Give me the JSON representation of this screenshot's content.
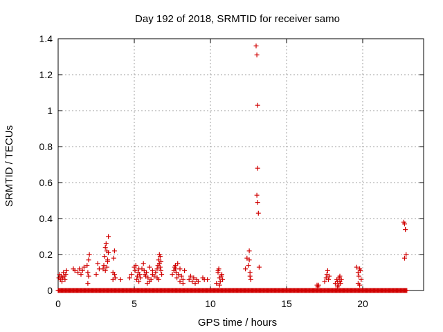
{
  "chart_data": {
    "type": "scatter",
    "title": "Day 192 of 2018, SRMTID for receiver samo",
    "xlabel": "GPS time / hours",
    "ylabel": "SRMTID / TECUs",
    "xlim": [
      0,
      24
    ],
    "ylim": [
      0,
      1.4
    ],
    "xticks": [
      0,
      5,
      10,
      15,
      20
    ],
    "xtick_labels": [
      "0",
      "5",
      "10",
      "15",
      "20"
    ],
    "yticks": [
      0,
      0.2,
      0.4,
      0.6,
      0.8,
      1.0,
      1.2,
      1.4
    ],
    "ytick_labels": [
      "0",
      "0.2",
      "0.4",
      "0.6",
      "0.8",
      "1",
      "1.2",
      "1.4"
    ],
    "grid": true,
    "marker": "+",
    "color": "#d00000",
    "baseline": {
      "y": 0,
      "x_start": 0,
      "x_end": 22.9,
      "step": 0.05
    },
    "series": [
      {
        "name": "samo",
        "x": [
          0.05,
          0.1,
          0.15,
          0.2,
          0.25,
          0.3,
          0.35,
          0.4,
          0.45,
          0.5,
          0.55,
          1.0,
          1.1,
          1.3,
          1.4,
          1.5,
          1.6,
          1.7,
          1.9,
          1.95,
          2.0,
          2.05,
          1.95,
          2.0,
          2.5,
          2.6,
          2.7,
          2.95,
          3.0,
          3.05,
          3.1,
          3.15,
          3.2,
          3.25,
          3.3,
          3.1,
          3.2,
          3.3,
          3.25,
          3.6,
          3.65,
          3.7,
          3.75,
          3.6,
          3.7,
          4.1,
          4.7,
          4.8,
          5.0,
          5.05,
          5.1,
          5.2,
          5.25,
          5.3,
          5.35,
          5.4,
          5.15,
          5.3,
          5.5,
          5.6,
          5.65,
          5.7,
          5.75,
          5.8,
          5.9,
          6.0,
          6.1,
          6.2,
          6.0,
          6.2,
          5.85,
          6.3,
          6.4,
          6.5,
          6.55,
          6.6,
          6.65,
          6.7,
          6.75,
          6.8,
          6.6,
          6.7,
          6.5,
          6.65,
          6.75,
          7.5,
          7.6,
          7.65,
          7.7,
          7.75,
          7.8,
          7.85,
          7.9,
          8.0,
          8.1,
          8.2,
          8.3,
          8.0,
          8.2,
          7.7,
          8.6,
          8.7,
          8.8,
          8.9,
          9.0,
          9.1,
          9.2,
          9.5,
          9.6,
          9.8,
          10.4,
          10.5,
          10.55,
          10.6,
          10.65,
          10.7,
          10.75,
          10.8,
          10.5,
          10.6,
          12.3,
          12.4,
          12.5,
          12.55,
          12.6,
          12.65,
          12.55,
          12.6,
          13.0,
          13.05,
          13.1,
          13.1,
          13.05,
          13.1,
          13.15,
          13.2,
          17.0,
          17.05,
          17.1,
          17.5,
          17.6,
          17.65,
          17.7,
          17.75,
          17.8,
          18.2,
          18.3,
          18.35,
          18.4,
          18.45,
          18.5,
          18.55,
          18.6,
          18.35,
          18.5,
          19.6,
          19.7,
          19.75,
          19.8,
          19.85,
          19.9,
          19.7,
          19.8,
          22.7,
          22.75,
          22.8,
          22.85,
          22.75,
          22.8
        ],
        "y": [
          0.07,
          0.09,
          0.06,
          0.08,
          0.05,
          0.07,
          0.1,
          0.08,
          0.06,
          0.09,
          0.11,
          0.12,
          0.11,
          0.1,
          0.12,
          0.09,
          0.11,
          0.13,
          0.14,
          0.1,
          0.17,
          0.2,
          0.04,
          0.08,
          0.09,
          0.15,
          0.12,
          0.12,
          0.14,
          0.19,
          0.24,
          0.26,
          0.22,
          0.17,
          0.3,
          0.11,
          0.13,
          0.21,
          0.16,
          0.1,
          0.18,
          0.22,
          0.07,
          0.06,
          0.09,
          0.06,
          0.07,
          0.09,
          0.13,
          0.11,
          0.14,
          0.08,
          0.1,
          0.12,
          0.09,
          0.07,
          0.06,
          0.05,
          0.12,
          0.15,
          0.11,
          0.09,
          0.08,
          0.1,
          0.07,
          0.13,
          0.06,
          0.09,
          0.05,
          0.11,
          0.04,
          0.08,
          0.1,
          0.12,
          0.14,
          0.17,
          0.2,
          0.19,
          0.11,
          0.09,
          0.06,
          0.13,
          0.07,
          0.15,
          0.16,
          0.09,
          0.11,
          0.13,
          0.12,
          0.1,
          0.07,
          0.15,
          0.09,
          0.12,
          0.08,
          0.06,
          0.11,
          0.05,
          0.04,
          0.14,
          0.06,
          0.08,
          0.05,
          0.07,
          0.04,
          0.06,
          0.05,
          0.07,
          0.06,
          0.06,
          0.04,
          0.1,
          0.12,
          0.07,
          0.05,
          0.08,
          0.09,
          0.06,
          0.11,
          0.03,
          0.12,
          0.18,
          0.14,
          0.22,
          0.08,
          0.06,
          0.17,
          0.1,
          1.36,
          1.31,
          1.03,
          0.68,
          0.53,
          0.49,
          0.43,
          0.13,
          0.03,
          0.02,
          0.03,
          0.05,
          0.07,
          0.09,
          0.11,
          0.06,
          0.08,
          0.04,
          0.06,
          0.05,
          0.03,
          0.07,
          0.05,
          0.04,
          0.06,
          0.02,
          0.08,
          0.13,
          0.1,
          0.08,
          0.12,
          0.11,
          0.06,
          0.04,
          0.03,
          0.38,
          0.37,
          0.34,
          0.2,
          0.18,
          0.34
        ]
      }
    ]
  }
}
